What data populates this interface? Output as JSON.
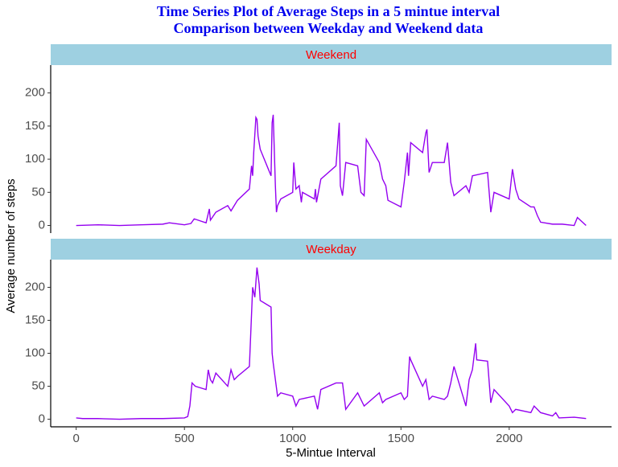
{
  "title": "Time Series Plot of Average Steps in a 5 mintue interval",
  "subtitle": "Comparison between Weekday and Weekend data",
  "xlabel": "5-Mintue Interval",
  "ylabel": "Average number of steps",
  "chart_data": [
    {
      "type": "line",
      "facet": "Weekend",
      "color": "#9400f0",
      "xlim": [
        -117.75,
        2472.75
      ],
      "ylim": [
        -11.5,
        242
      ],
      "yticks": [
        0,
        50,
        100,
        150,
        200
      ],
      "x": [
        0,
        100,
        200,
        300,
        400,
        430,
        500,
        530,
        545,
        600,
        615,
        620,
        645,
        700,
        715,
        745,
        800,
        810,
        815,
        820,
        830,
        835,
        840,
        850,
        900,
        905,
        910,
        920,
        925,
        930,
        945,
        1000,
        1005,
        1015,
        1030,
        1040,
        1045,
        1100,
        1105,
        1110,
        1130,
        1200,
        1215,
        1220,
        1230,
        1245,
        1300,
        1315,
        1330,
        1340,
        1400,
        1415,
        1430,
        1440,
        1500,
        1515,
        1530,
        1535,
        1545,
        1600,
        1615,
        1620,
        1630,
        1645,
        1700,
        1715,
        1730,
        1745,
        1800,
        1815,
        1830,
        1900,
        1915,
        1930,
        2000,
        2015,
        2030,
        2045,
        2100,
        2115,
        2130,
        2145,
        2200,
        2215,
        2245,
        2300,
        2315,
        2355
      ],
      "values": [
        0,
        1,
        0,
        1,
        2,
        4,
        1,
        3,
        10,
        4,
        25,
        8,
        20,
        30,
        22,
        38,
        55,
        90,
        75,
        110,
        163,
        160,
        135,
        115,
        75,
        155,
        167,
        60,
        20,
        30,
        40,
        50,
        95,
        55,
        60,
        35,
        50,
        40,
        55,
        35,
        70,
        90,
        155,
        60,
        45,
        95,
        90,
        50,
        45,
        130,
        95,
        70,
        60,
        38,
        28,
        65,
        110,
        75,
        125,
        110,
        140,
        145,
        80,
        95,
        95,
        125,
        65,
        45,
        60,
        50,
        75,
        80,
        20,
        50,
        40,
        85,
        55,
        40,
        28,
        28,
        15,
        5,
        2,
        2,
        2,
        0,
        12,
        0
      ]
    },
    {
      "type": "line",
      "facet": "Weekday",
      "color": "#9400f0",
      "xlim": [
        -117.75,
        2472.75
      ],
      "ylim": [
        -11.5,
        242
      ],
      "yticks": [
        0,
        50,
        100,
        150,
        200
      ],
      "xticks": [
        0,
        500,
        1000,
        1500,
        2000
      ],
      "x": [
        0,
        30,
        100,
        200,
        300,
        400,
        500,
        515,
        525,
        535,
        550,
        600,
        610,
        620,
        630,
        645,
        700,
        715,
        730,
        745,
        800,
        815,
        825,
        835,
        845,
        850,
        900,
        905,
        910,
        920,
        930,
        945,
        1000,
        1015,
        1030,
        1100,
        1115,
        1130,
        1200,
        1230,
        1245,
        1300,
        1330,
        1400,
        1415,
        1430,
        1500,
        1515,
        1530,
        1540,
        1545,
        1600,
        1615,
        1630,
        1645,
        1700,
        1715,
        1730,
        1745,
        1800,
        1815,
        1830,
        1845,
        1850,
        1900,
        1915,
        1930,
        2000,
        2015,
        2030,
        2100,
        2115,
        2145,
        2200,
        2215,
        2230,
        2300,
        2330,
        2355
      ],
      "values": [
        2,
        1,
        1,
        0,
        1,
        1,
        2,
        4,
        20,
        55,
        50,
        45,
        75,
        60,
        55,
        70,
        50,
        75,
        60,
        65,
        80,
        200,
        185,
        230,
        205,
        180,
        170,
        100,
        85,
        60,
        35,
        40,
        35,
        20,
        30,
        35,
        15,
        45,
        55,
        55,
        15,
        40,
        20,
        40,
        25,
        30,
        40,
        30,
        35,
        95,
        90,
        50,
        60,
        30,
        35,
        30,
        35,
        55,
        80,
        20,
        60,
        75,
        115,
        90,
        88,
        25,
        45,
        20,
        10,
        15,
        10,
        20,
        10,
        5,
        10,
        2,
        3,
        2,
        1
      ]
    }
  ]
}
